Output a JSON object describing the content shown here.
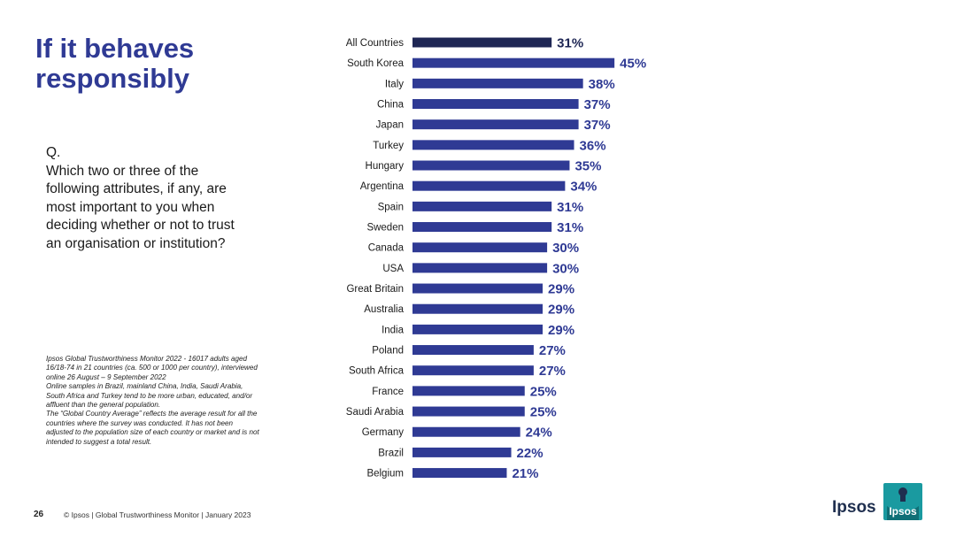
{
  "title": [
    "If it behaves",
    "responsibly"
  ],
  "question": {
    "prefix": "Q.",
    "lines": [
      "Which two or three of the",
      "following attributes, if any, are",
      "most important to you when",
      "deciding whether or not to trust",
      "an organisation or institution?"
    ]
  },
  "footnote": [
    "Ipsos Global Trustworthiness Monitor 2022 - 16017 adults aged",
    "16/18-74 in 21 countries (ca. 500 or 1000 per country), interviewed",
    "online 26 August – 9 September 2022",
    "Online samples in Brazil, mainland China, India, Saudi Arabia,",
    "South Africa and Turkey tend to be more urban, educated, and/or",
    "affluent than the general population.",
    "The “Global Country Average” reflects the average result for all the",
    "countries where the survey was conducted. It has not been",
    "adjusted to the population size of each country or market and is not",
    "intended to suggest a total result."
  ],
  "footer": {
    "page_number": "26",
    "text": "© Ipsos | Global Trustworthiness Monitor | January 2023",
    "brand": "Ipsos",
    "logo_text": "Ipsos"
  },
  "colors": {
    "title": "#2f3a94",
    "bar": "#2f3a94",
    "highlight_bar": "#1e2654",
    "value_label": "#2f3a94",
    "logo_teal": "#1a9aa0"
  },
  "chart_data": {
    "type": "bar",
    "orientation": "horizontal",
    "unit": "%",
    "categories": [
      "All Countries",
      "South Korea",
      "Italy",
      "China",
      "Japan",
      "Turkey",
      "Hungary",
      "Argentina",
      "Spain",
      "Sweden",
      "Canada",
      "USA",
      "Great Britain",
      "Australia",
      "India",
      "Poland",
      "South Africa",
      "France",
      "Saudi Arabia",
      "Germany",
      "Brazil",
      "Belgium"
    ],
    "values": [
      31,
      45,
      38,
      37,
      37,
      36,
      35,
      34,
      31,
      31,
      30,
      30,
      29,
      29,
      29,
      27,
      27,
      25,
      25,
      24,
      22,
      21
    ],
    "labels": [
      "31%",
      "45%",
      "38%",
      "37%",
      "37%",
      "36%",
      "35%",
      "34%",
      "31%",
      "31%",
      "30%",
      "30%",
      "29%",
      "29%",
      "29%",
      "27%",
      "27%",
      "25%",
      "25%",
      "24%",
      "22%",
      "21%"
    ],
    "highlight_index": 0,
    "axis_visible": false,
    "grid": false
  }
}
